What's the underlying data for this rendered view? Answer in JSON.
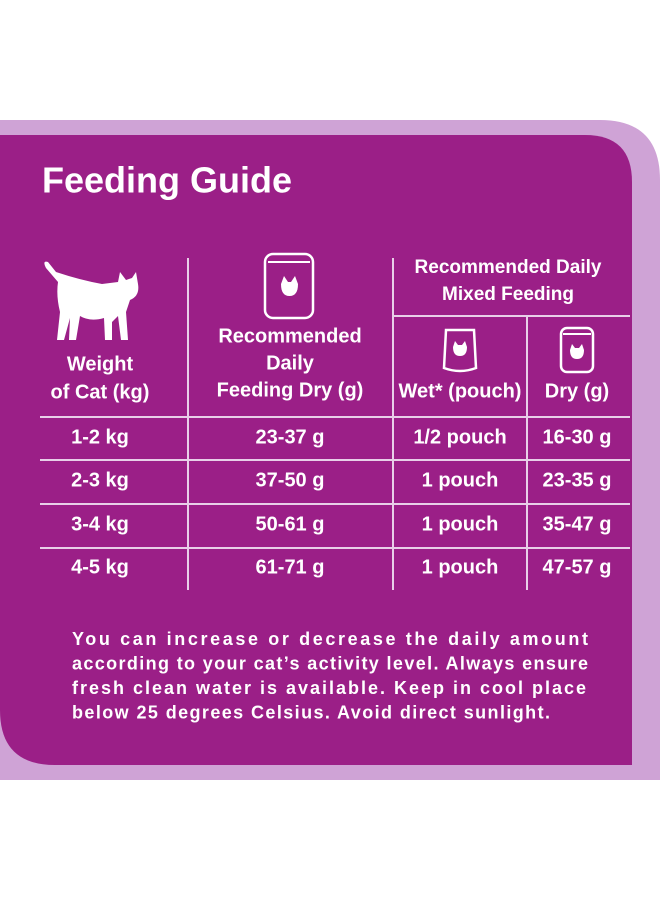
{
  "header": {
    "title": "Feeding Guide"
  },
  "table": {
    "headers": {
      "weight": [
        "Weight",
        "of Cat (kg)"
      ],
      "dry": [
        "Recommended",
        "Daily",
        "Feeding Dry (g)"
      ],
      "mixed": [
        "Recommended Daily",
        "Mixed Feeding"
      ],
      "wet": "Wet* (pouch)",
      "mixed_dry": "Dry (g)"
    },
    "rows": [
      [
        "1-2 kg",
        "23-37 g",
        "1/2 pouch",
        "16-30 g"
      ],
      [
        "2-3 kg",
        "37-50 g",
        "1 pouch",
        "23-35 g"
      ],
      [
        "3-4 kg",
        "50-61 g",
        "1 pouch",
        "35-47 g"
      ],
      [
        "4-5 kg",
        "61-71 g",
        "1 pouch",
        "47-57 g"
      ]
    ]
  },
  "note": [
    "You can increase or decrease the daily amount",
    "according to your cat’s activity level. Always ensure",
    "fresh clean water is available. Keep in cool place",
    "below 25 degrees Celsius. Avoid direct sunlight."
  ]
}
